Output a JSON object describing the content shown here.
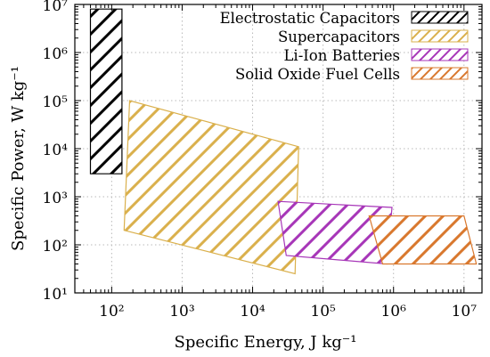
{
  "chart_data": {
    "type": "area",
    "xlabel": "Specific Energy, J kg⁻¹",
    "ylabel": "Specific Power, W kg⁻¹",
    "x_scale": "log",
    "y_scale": "log",
    "xlim": [
      30,
      18000000
    ],
    "ylim": [
      10,
      10000000
    ],
    "x_ticks": [
      {
        "value": 100,
        "label": "10²"
      },
      {
        "value": 1000,
        "label": "10³"
      },
      {
        "value": 10000,
        "label": "10⁴"
      },
      {
        "value": 100000,
        "label": "10⁵"
      },
      {
        "value": 1000000,
        "label": "10⁶"
      },
      {
        "value": 10000000,
        "label": "10⁷"
      }
    ],
    "y_ticks": [
      {
        "value": 10,
        "label": "10¹"
      },
      {
        "value": 100,
        "label": "10²"
      },
      {
        "value": 1000,
        "label": "10³"
      },
      {
        "value": 10000,
        "label": "10⁴"
      },
      {
        "value": 100000,
        "label": "10⁵"
      },
      {
        "value": 1000000,
        "label": "10⁶"
      },
      {
        "value": 10000000,
        "label": "10⁷"
      }
    ],
    "grid": true,
    "legend_position": "top-right",
    "series": [
      {
        "name": "Electrostatic Capacitors",
        "color": "#000000",
        "polygon": [
          [
            50,
            3000
          ],
          [
            50,
            8000000
          ],
          [
            140,
            8000000
          ],
          [
            140,
            3000
          ]
        ]
      },
      {
        "name": "Supercapacitors",
        "color": "#dab04c",
        "polygon": [
          [
            150,
            200
          ],
          [
            180,
            100000
          ],
          [
            45000,
            11000
          ],
          [
            40000,
            25
          ]
        ]
      },
      {
        "name": "Li-Ion Batteries",
        "color": "#a736b8",
        "polygon": [
          [
            23000,
            800
          ],
          [
            950000,
            600
          ],
          [
            800000,
            40
          ],
          [
            30000,
            60
          ]
        ]
      },
      {
        "name": "Solid Oxide Fuel Cells",
        "color": "#d9782e",
        "polygon": [
          [
            450000,
            400
          ],
          [
            10000000,
            400
          ],
          [
            15000000,
            40
          ],
          [
            700000,
            40
          ]
        ]
      }
    ]
  }
}
